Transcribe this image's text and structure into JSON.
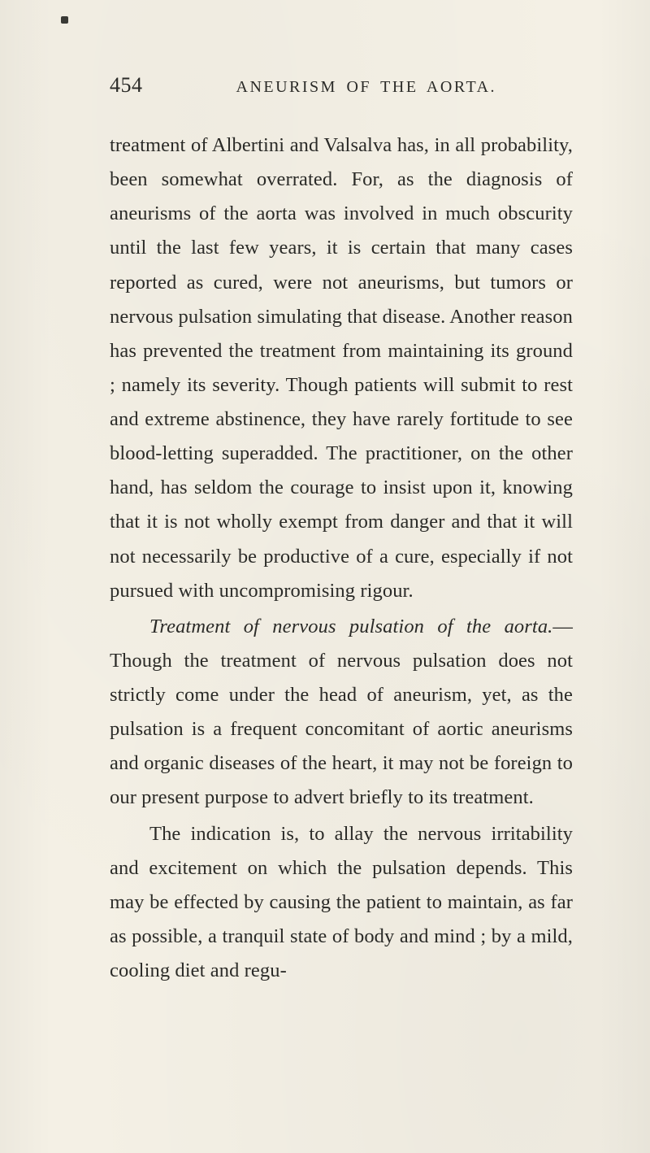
{
  "page": {
    "number": "454",
    "running_head": "ANEURISM OF THE AORTA.",
    "colors": {
      "background": "#f4f0e5",
      "text": "#2b2b28",
      "dot": "#3a3a35"
    },
    "typography": {
      "body_fontsize_pt": 18,
      "header_fontsize_pt": 15,
      "page_number_fontsize_pt": 20,
      "line_height": 1.72,
      "font_family": "Georgia / Times serif"
    },
    "paragraphs": [
      {
        "indent": false,
        "text": "treatment of Albertini and Valsalva has, in all probability, been somewhat overrated. For, as the diagnosis of aneurisms of the aorta was involved in much obscurity until the last few years, it is certain that many cases reported as cured, were not aneurisms, but tumors or nervous pulsation simulating that disease. Another reason has prevented the treatment from maintaining its ground ; namely its severity. Though patients will submit to rest and extreme abstinence, they have rarely fortitude to see blood-letting superadded. The practitioner, on the other hand, has seldom the courage to insist upon it, knowing that it is not wholly exempt from danger and that it will not necessarily be productive of a cure, especially if not pursued with uncompromising rigour."
      },
      {
        "indent": true,
        "italic_lead": "Treatment of nervous pulsation of the aorta.",
        "text_after_lead": "— Though the treatment of nervous pulsation does not strictly come under the head of aneurism, yet, as the pulsation is a frequent concomitant of aortic aneurisms and organic diseases of the heart, it may not be foreign to our present purpose to advert briefly to its treatment."
      },
      {
        "indent": true,
        "text": "The indication is, to allay the nervous irritability and excitement on which the pulsation depends. This may be effected by causing the patient to maintain, as far as possible, a tranquil state of body and mind ; by a mild, cooling diet and regu-"
      }
    ]
  }
}
